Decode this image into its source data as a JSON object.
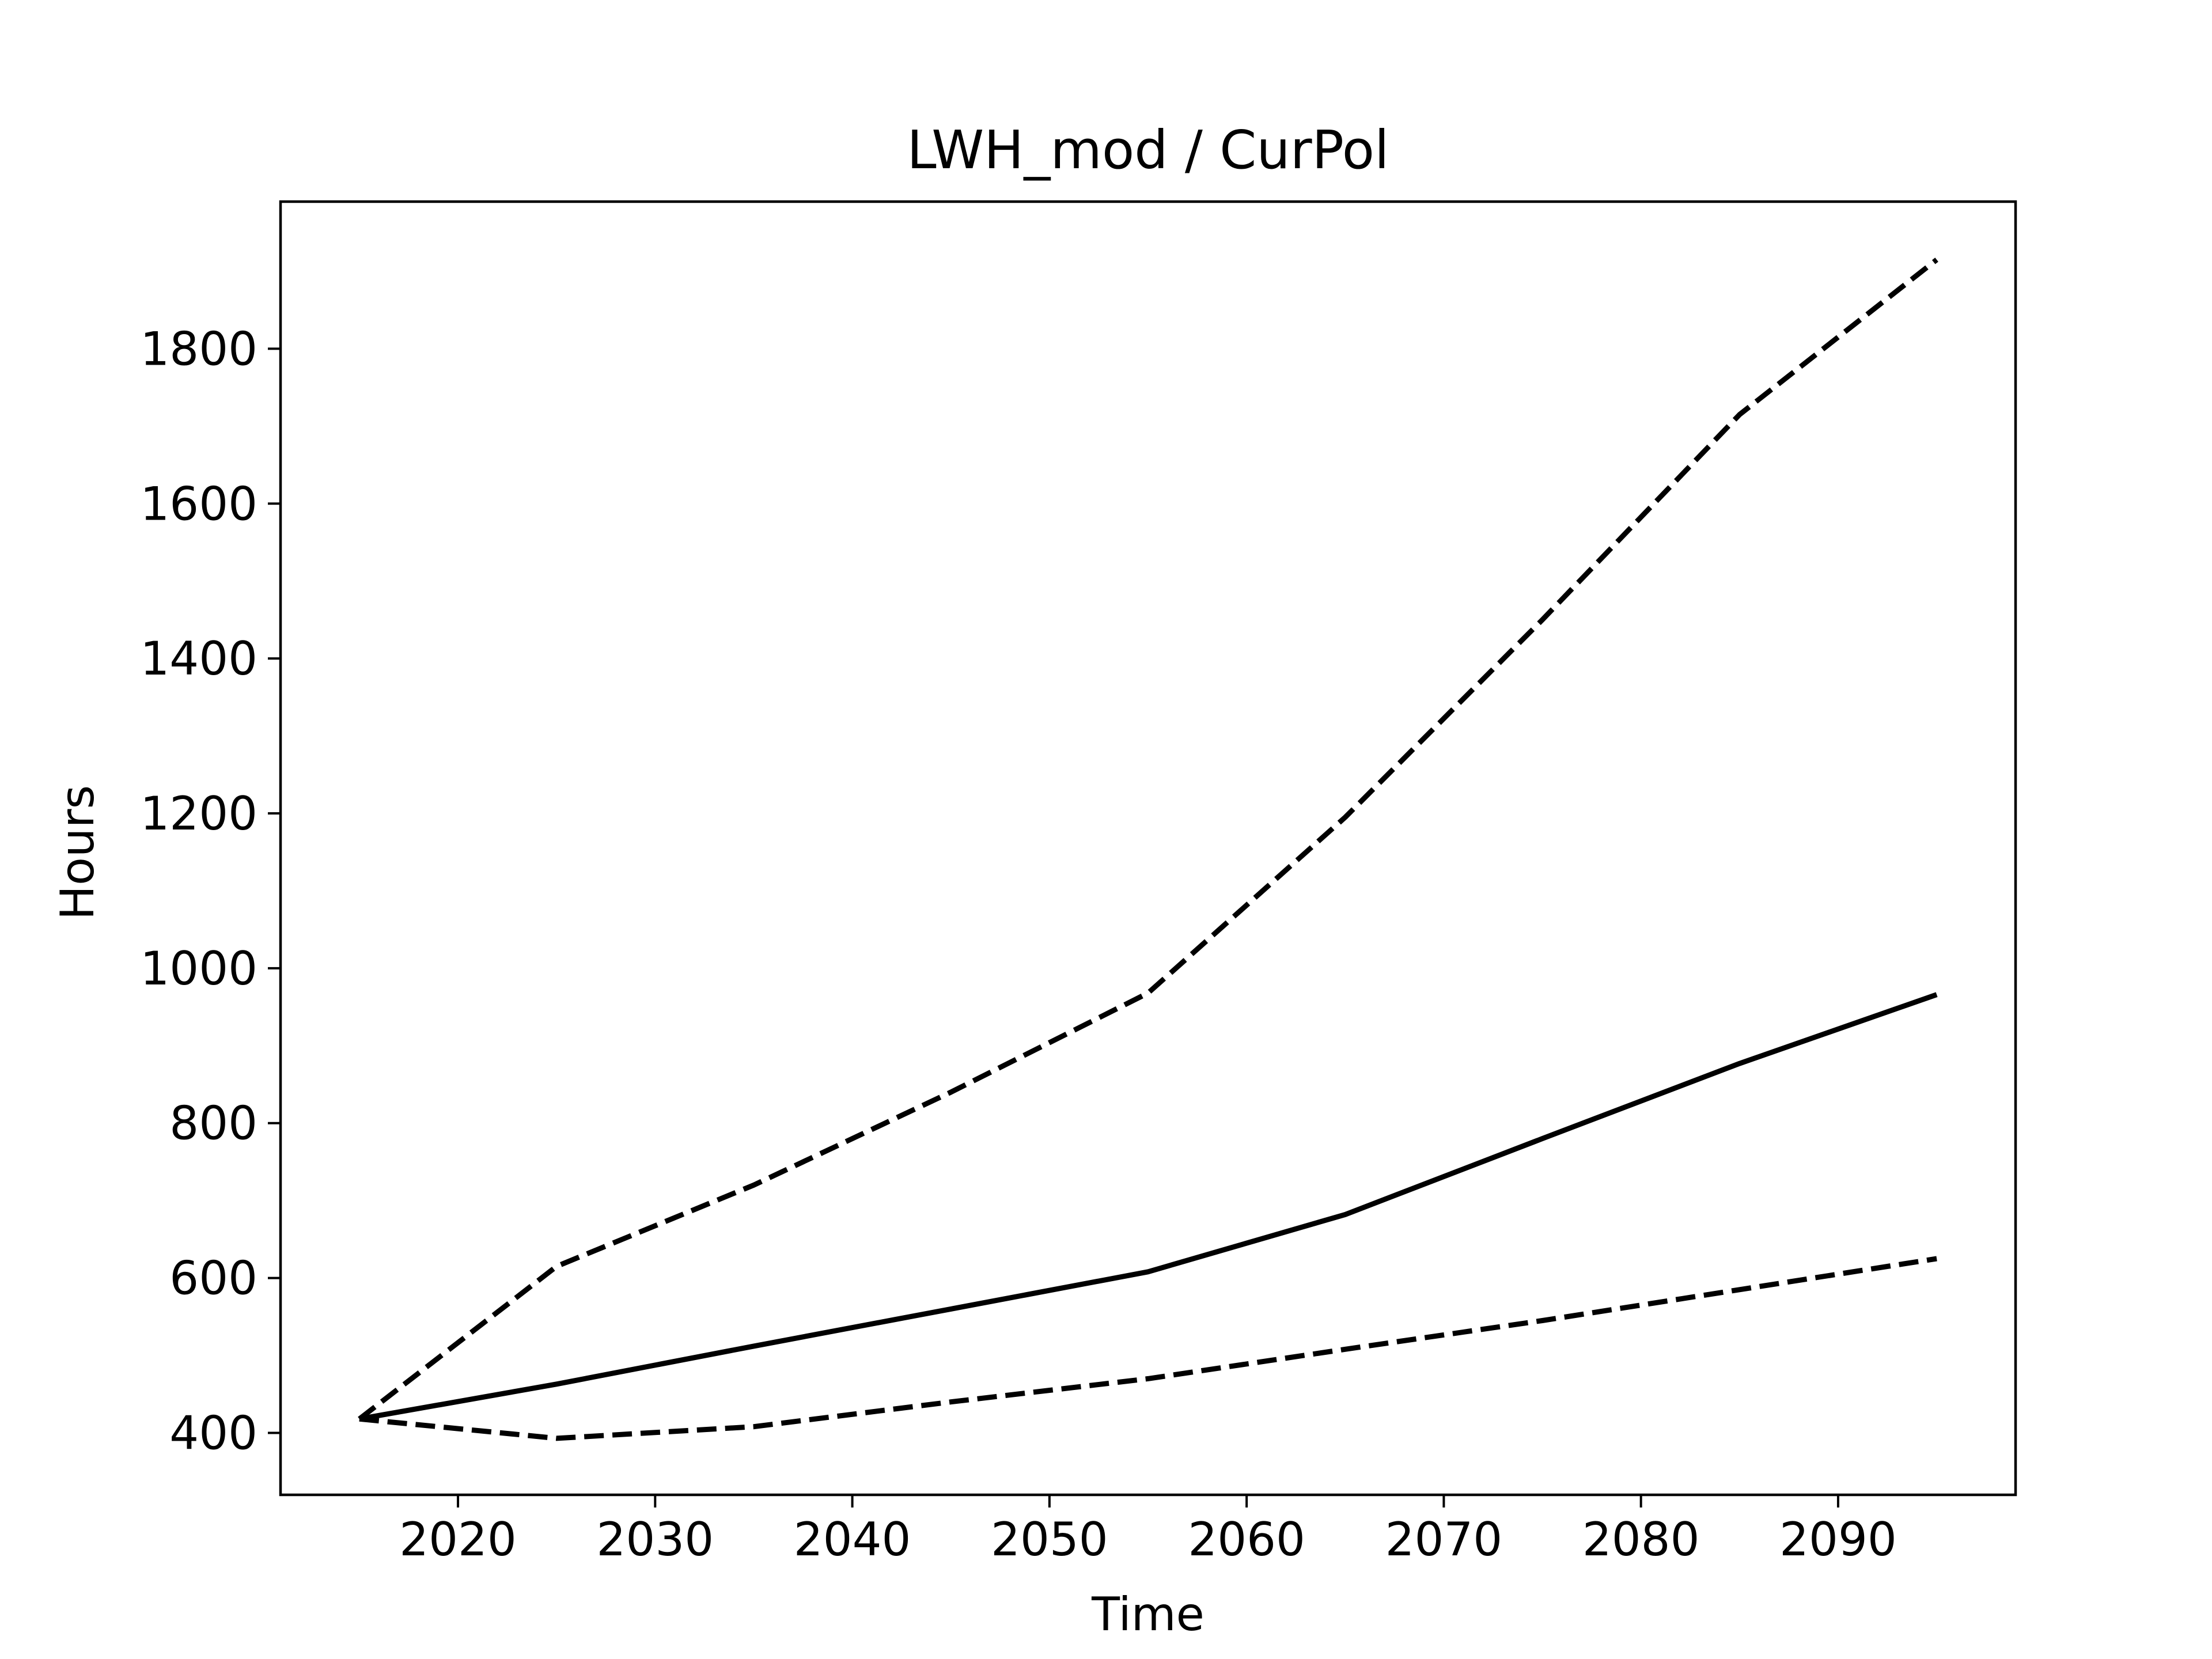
{
  "chart_data": {
    "type": "line",
    "title": "LWH_mod / CurPol",
    "xlabel": "Time",
    "ylabel": "Hours",
    "xlim": [
      2011,
      2099
    ],
    "ylim": [
      320,
      1990
    ],
    "x_ticks": [
      2020,
      2030,
      2040,
      2050,
      2060,
      2070,
      2080,
      2090
    ],
    "y_ticks": [
      400,
      600,
      800,
      1000,
      1200,
      1400,
      1600,
      1800
    ],
    "grid": false,
    "legend": "none",
    "series": [
      {
        "style": "dashed",
        "color": "#000000",
        "x": [
          2015,
          2025,
          2035,
          2045,
          2055,
          2065,
          2075,
          2085,
          2095
        ],
        "values": [
          418,
          615,
          720,
          840,
          968,
          1195,
          1450,
          1715,
          1915
        ]
      },
      {
        "style": "solid",
        "color": "#000000",
        "x": [
          2015,
          2025,
          2035,
          2045,
          2055,
          2065,
          2075,
          2085,
          2095
        ],
        "values": [
          418,
          463,
          512,
          560,
          608,
          682,
          780,
          877,
          966
        ]
      },
      {
        "style": "dashed",
        "color": "#000000",
        "x": [
          2015,
          2025,
          2035,
          2045,
          2055,
          2065,
          2075,
          2085,
          2095
        ],
        "values": [
          418,
          393,
          408,
          440,
          470,
          508,
          545,
          585,
          625
        ]
      }
    ]
  }
}
